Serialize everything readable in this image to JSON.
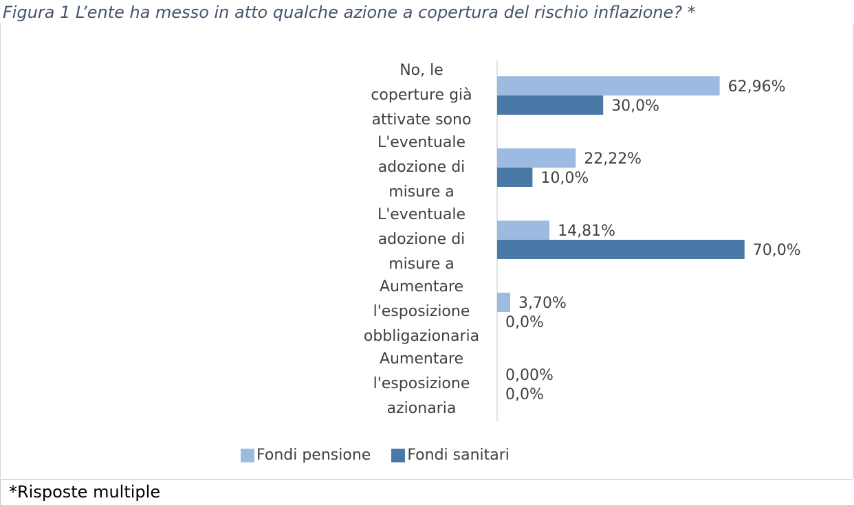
{
  "title": "Figura 1 L’ente ha messo in atto qualche azione a copertura del rischio inflazione? *",
  "footnote": "*Risposte multiple",
  "chart_data": {
    "type": "bar",
    "orientation": "horizontal",
    "categories": [
      [
        "No, le",
        "coperture già",
        "attivate sono"
      ],
      [
        "L'eventuale",
        "adozione di",
        "misure a"
      ],
      [
        "L'eventuale",
        "adozione di",
        "misure a"
      ],
      [
        "Aumentare",
        "l'esposizione",
        "obbligazionaria"
      ],
      [
        "Aumentare",
        "l'esposizione",
        "azionaria"
      ]
    ],
    "series": [
      {
        "name": "Fondi pensione",
        "color": "#9dbbe0",
        "values": [
          62.96,
          22.22,
          14.81,
          3.7,
          0.0
        ],
        "labels": [
          "62,96%",
          "22,22%",
          "14,81%",
          "3,70%",
          "0,00%"
        ]
      },
      {
        "name": "Fondi sanitari",
        "color": "#4a79a8",
        "values": [
          30.0,
          10.0,
          70.0,
          0.0,
          0.0
        ],
        "labels": [
          "30,0%",
          "10,0%",
          "70,0%",
          "0,0%",
          "0,0%"
        ]
      }
    ],
    "xlim": [
      0,
      70
    ],
    "grid": false,
    "legend": "bottom"
  }
}
